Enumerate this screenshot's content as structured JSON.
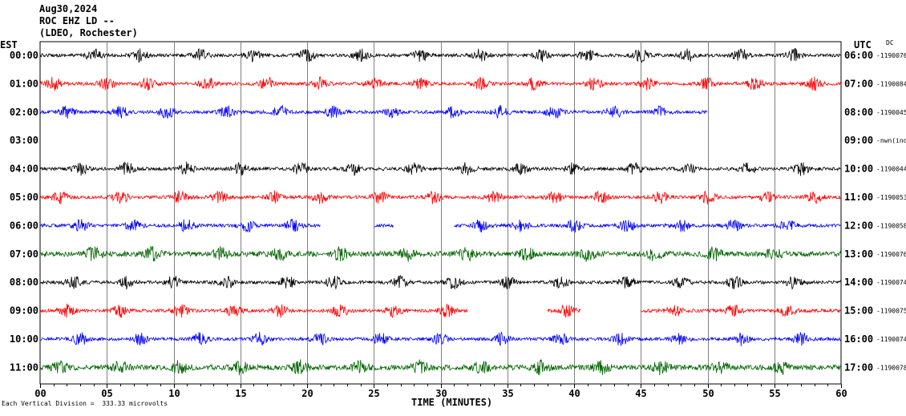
{
  "header": {
    "date": "Aug30,2024",
    "station": "ROC EHZ LD --",
    "location": "(LDEO, Rochester)"
  },
  "labels": {
    "left_timezone": "EST",
    "right_timezone": "UTC",
    "dc_label": "DC",
    "x_title": "TIME (MINUTES)",
    "scale_note": "Each Vertical Division =  333.33 microvolts"
  },
  "colors": {
    "black": "#000000",
    "red": "#ff0000",
    "blue": "#0000ff",
    "green": "#006400",
    "grid": "#000000"
  },
  "chart_data": {
    "type": "line",
    "x_ticks": [
      "00",
      "05",
      "10",
      "15",
      "20",
      "25",
      "30",
      "35",
      "40",
      "45",
      "50",
      "55",
      "60"
    ],
    "xlim": [
      0,
      60
    ],
    "rows": [
      {
        "est": "00:00",
        "utc": "06:00",
        "dc": "-1190076",
        "color": "black",
        "segments": [
          [
            0,
            60
          ]
        ],
        "bursts": [
          4,
          7.5,
          12,
          16,
          20,
          24,
          28.5,
          33,
          37.5,
          41,
          45,
          48.5,
          52.5,
          56.5
        ]
      },
      {
        "est": "01:00",
        "utc": "07:00",
        "dc": "-1190084",
        "color": "red",
        "segments": [
          [
            0,
            60
          ]
        ],
        "bursts": [
          1,
          5,
          8,
          12.5,
          17,
          21,
          25,
          28.5,
          33,
          37,
          41.5,
          45.5,
          50,
          53.5,
          58
        ]
      },
      {
        "est": "02:00",
        "utc": "08:00",
        "dc": "-1190045",
        "color": "blue",
        "segments": [
          [
            0,
            50
          ]
        ],
        "bursts": [
          2,
          6,
          9.5,
          14,
          18,
          22,
          26.5,
          31,
          34.5,
          38.5,
          43,
          46.5
        ]
      },
      {
        "est": "03:00",
        "utc": "09:00",
        "dc": "-nwn(ind",
        "color": "black",
        "segments": [],
        "bursts": []
      },
      {
        "est": "04:00",
        "utc": "10:00",
        "dc": "-1190044",
        "color": "black",
        "segments": [
          [
            0,
            60
          ]
        ],
        "bursts": [
          3,
          6.5,
          11,
          15,
          19.5,
          23.5,
          28,
          32,
          36,
          40,
          44.5,
          48.5,
          53,
          57
        ]
      },
      {
        "est": "05:00",
        "utc": "11:00",
        "dc": "-1190053",
        "color": "red",
        "segments": [
          [
            0,
            60
          ]
        ],
        "bursts": [
          1.5,
          6,
          10.5,
          13.5,
          17.5,
          21,
          25.5,
          29.5,
          34,
          38.5,
          42,
          46.5,
          50,
          54.5,
          58
        ]
      },
      {
        "est": "06:00",
        "utc": "12:00",
        "dc": "-1190058",
        "color": "blue",
        "segments": [
          [
            0,
            21
          ],
          [
            25,
            26.5
          ],
          [
            31,
            60
          ]
        ],
        "bursts": [
          3,
          7,
          11,
          15.5,
          19,
          33,
          36,
          40,
          44,
          48,
          52,
          56
        ]
      },
      {
        "est": "07:00",
        "utc": "13:00",
        "dc": "-1190076",
        "color": "green",
        "segments": [
          [
            0,
            60
          ]
        ],
        "bursts": [
          4,
          8.5,
          13.5,
          18,
          22.5,
          27.5,
          32,
          36.5,
          41,
          46,
          50.5,
          55
        ]
      },
      {
        "est": "08:00",
        "utc": "14:00",
        "dc": "-1190074",
        "color": "black",
        "segments": [
          [
            0,
            60
          ]
        ],
        "bursts": [
          2.5,
          6.5,
          10,
          14,
          18.5,
          22,
          27,
          31,
          35,
          39,
          44,
          48,
          52,
          56.5
        ]
      },
      {
        "est": "09:00",
        "utc": "15:00",
        "dc": "-1190075",
        "color": "red",
        "segments": [
          [
            0,
            32
          ],
          [
            38,
            40.5
          ],
          [
            45,
            60
          ]
        ],
        "bursts": [
          2,
          6,
          10.5,
          14.5,
          18,
          22.5,
          26.5,
          30.5,
          39.5,
          47.5,
          52,
          56
        ]
      },
      {
        "est": "10:00",
        "utc": "16:00",
        "dc": "-1190074",
        "color": "blue",
        "segments": [
          [
            0,
            60
          ]
        ],
        "bursts": [
          3,
          7.5,
          12,
          16.5,
          21,
          25.5,
          30,
          34.5,
          39,
          43.5,
          48,
          52.5,
          57
        ]
      },
      {
        "est": "11:00",
        "utc": "17:00",
        "dc": "-1190078",
        "color": "green",
        "segments": [
          [
            0,
            60
          ]
        ],
        "bursts": [
          1.5,
          6,
          10.5,
          15,
          19.5,
          24,
          28.5,
          33,
          37.5,
          42,
          46.5,
          51,
          55.5
        ]
      }
    ]
  }
}
